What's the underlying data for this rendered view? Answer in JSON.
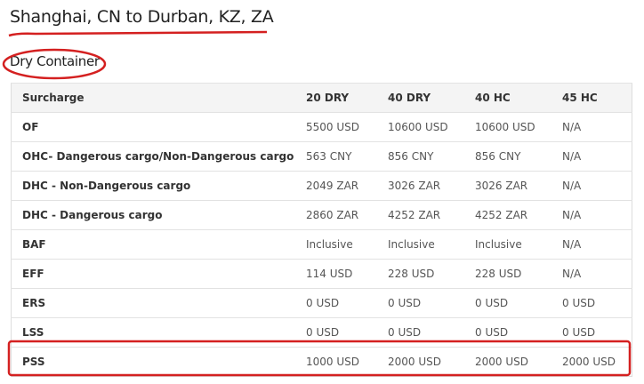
{
  "header": {
    "title": "Shanghai, CN to Durban, KZ, ZA",
    "subtitle": "Dry Container"
  },
  "table": {
    "columns": [
      "Surcharge",
      "20 DRY",
      "40 DRY",
      "40 HC",
      "45 HC"
    ],
    "rows": [
      [
        "OF",
        "5500 USD",
        "10600 USD",
        "10600 USD",
        "N/A"
      ],
      [
        "OHC- Dangerous cargo/Non-Dangerous cargo",
        "563 CNY",
        "856 CNY",
        "856 CNY",
        "N/A"
      ],
      [
        "DHC - Non-Dangerous cargo",
        "2049 ZAR",
        "3026 ZAR",
        "3026 ZAR",
        "N/A"
      ],
      [
        "DHC - Dangerous cargo",
        "2860 ZAR",
        "4252 ZAR",
        "4252 ZAR",
        "N/A"
      ],
      [
        "BAF",
        "Inclusive",
        "Inclusive",
        "Inclusive",
        "N/A"
      ],
      [
        "EFF",
        "114 USD",
        "228 USD",
        "228 USD",
        "N/A"
      ],
      [
        "ERS",
        "0 USD",
        "0 USD",
        "0 USD",
        "0 USD"
      ],
      [
        "LSS",
        "0 USD",
        "0 USD",
        "0 USD",
        "0 USD"
      ],
      [
        "PSS",
        "1000 USD",
        "2000 USD",
        "2000 USD",
        "2000 USD"
      ]
    ]
  },
  "annotation_color": "#d42020"
}
